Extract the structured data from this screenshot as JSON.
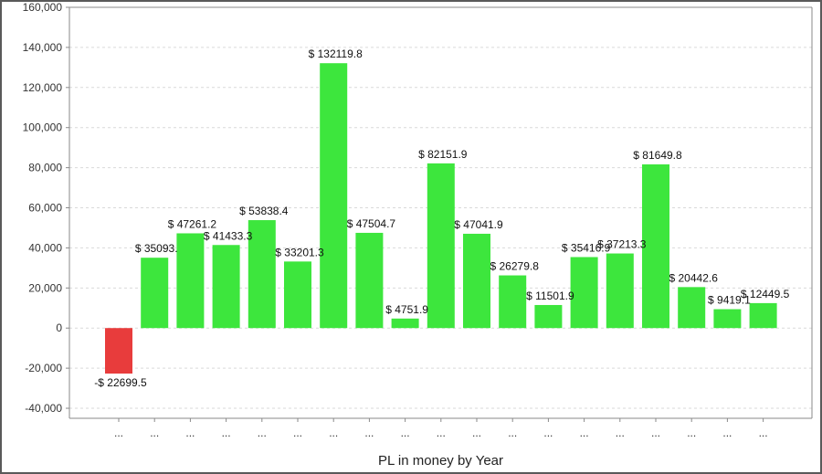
{
  "chart_data": {
    "type": "bar",
    "title": "",
    "xlabel": "PL in money by Year",
    "ylabel": "",
    "ylim": [
      -45000,
      160000
    ],
    "y_ticks": [
      -40000,
      -20000,
      0,
      20000,
      40000,
      60000,
      80000,
      100000,
      120000,
      140000,
      160000
    ],
    "y_tick_labels": [
      "-40,000",
      "-20,000",
      "0",
      "20,000",
      "40,000",
      "60,000",
      "80,000",
      "100,000",
      "120,000",
      "140,000",
      "160,000"
    ],
    "grid": true,
    "categories": [
      "...",
      "...",
      "...",
      "...",
      "...",
      "...",
      "...",
      "...",
      "...",
      "...",
      "...",
      "...",
      "...",
      "...",
      "...",
      "...",
      "...",
      "...",
      "..."
    ],
    "values": [
      -22699.5,
      35093.3,
      47261.2,
      41433.3,
      53838.4,
      33201.3,
      132119.8,
      47504.7,
      4751.9,
      82151.9,
      47041.9,
      26279.8,
      11501.9,
      35416.9,
      37213.3,
      81649.8,
      20442.6,
      9419.1,
      12449.5
    ],
    "data_labels": [
      "-$ 22699.5",
      "$ 35093.",
      "$ 47261.2",
      "$ 41433.3",
      "$ 53838.4",
      "$ 33201.3",
      "$ 132119.8",
      "$ 47504.7",
      "$ 4751.9",
      "$ 82151.9",
      "$ 47041.9",
      "$ 26279.8",
      "$ 11501.9",
      "$ 35416.9",
      "$ 37213.3",
      "$ 81649.8",
      "$ 20442.6",
      "$ 9419.1",
      "$ 12449.5"
    ],
    "colors": {
      "positive": "#3de63d",
      "negative": "#e83c3c",
      "grid": "#d9d9d9",
      "axis": "#8a8a8a"
    }
  }
}
